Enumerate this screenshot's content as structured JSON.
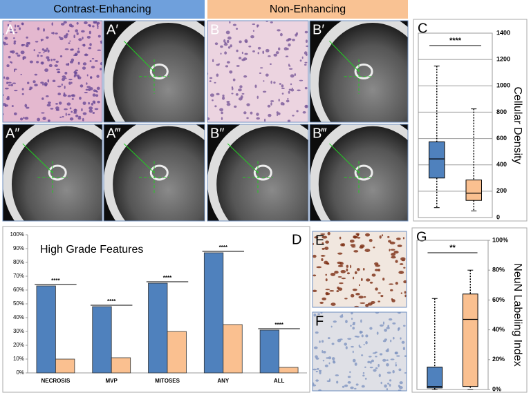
{
  "figure": {
    "headers": [
      "Contrast-Enhancing",
      "Non-Enhancing"
    ],
    "panel_labels": [
      "A",
      "A′",
      "B",
      "B′",
      "A″",
      "A‴",
      "B″",
      "B‴",
      "E",
      "F"
    ]
  },
  "chart_data": [
    {
      "type": "box",
      "label": "C",
      "title": "Cellular Density",
      "annotation": "****",
      "ylim": [
        0,
        1400
      ],
      "yticks": [
        0,
        200,
        400,
        600,
        800,
        1000,
        1200,
        1400
      ],
      "grid": true,
      "boxes": [
        {
          "color": "#4f81bd",
          "whisker_low": 75,
          "q1": 300,
          "median": 445,
          "q3": 575,
          "whisker_high": 1150
        },
        {
          "color": "#fac090",
          "whisker_low": 50,
          "q1": 130,
          "median": 185,
          "q3": 285,
          "whisker_high": 825
        }
      ]
    },
    {
      "type": "bar",
      "label": "D",
      "title": "High Grade Features",
      "categories": [
        "NECROSIS",
        "MVP",
        "MITOSES",
        "ANY",
        "ALL"
      ],
      "annotations": [
        "****",
        "****",
        "****",
        "****",
        "****"
      ],
      "ylim": [
        0,
        100
      ],
      "yticks": [
        {
          "value": 0,
          "label": "0%"
        },
        {
          "value": 10,
          "label": "10%"
        },
        {
          "value": 20,
          "label": "20%"
        },
        {
          "value": 30,
          "label": "30%"
        },
        {
          "value": 40,
          "label": "40%"
        },
        {
          "value": 50,
          "label": "50%"
        },
        {
          "value": 60,
          "label": "60%"
        },
        {
          "value": 70,
          "label": "70%"
        },
        {
          "value": 80,
          "label": "80%"
        },
        {
          "value": 90,
          "label": "90%"
        },
        {
          "value": 100,
          "label": "100%"
        }
      ],
      "grid": false,
      "series": [
        {
          "color": "#4f81bd",
          "values": [
            63,
            48,
            65,
            87,
            31
          ]
        },
        {
          "color": "#fac090",
          "values": [
            10,
            11,
            30,
            35,
            4
          ]
        }
      ]
    },
    {
      "type": "box",
      "label": "G",
      "title": "NeuN Labeling Index",
      "annotation": "**",
      "ylim": [
        0,
        100
      ],
      "yticks": [
        {
          "value": 0,
          "label": "0%"
        },
        {
          "value": 20,
          "label": "20%"
        },
        {
          "value": 40,
          "label": "40%"
        },
        {
          "value": 60,
          "label": "60%"
        },
        {
          "value": 80,
          "label": "80%"
        },
        {
          "value": 100,
          "label": "100%"
        }
      ],
      "grid": false,
      "boxes": [
        {
          "color": "#4f81bd",
          "whisker_low": 0,
          "q1": 1,
          "median": 2,
          "q3": 15,
          "whisker_high": 61
        },
        {
          "color": "#fac090",
          "whisker_low": 0,
          "q1": 2,
          "median": 47,
          "q3": 64,
          "whisker_high": 80
        }
      ]
    }
  ]
}
